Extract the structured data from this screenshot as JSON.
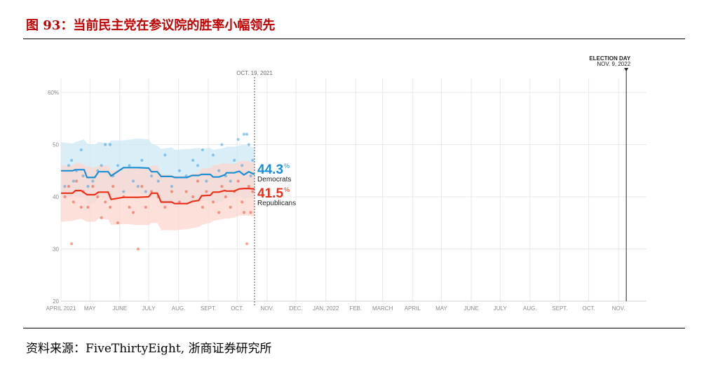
{
  "figure": {
    "title": "图 93：当前民主党在参议院的胜率小幅领先",
    "source": "资料来源：FiveThirtyEight, 浙商证券研究所"
  },
  "colors": {
    "title": "#c00000",
    "democrats": "#1a8fd6",
    "democrats_band": "#cde8f6",
    "republicans": "#ea3117",
    "republicans_band": "#fcd6cd",
    "grid": "#e8e8e8"
  },
  "chart_data": {
    "type": "line",
    "title": "",
    "xlabel": "",
    "ylabel": "",
    "ylim": [
      20,
      60
    ],
    "y_ticks": [
      20,
      30,
      40,
      50,
      60
    ],
    "y_tick_labels": [
      "20",
      "30",
      "40",
      "50",
      "60%"
    ],
    "x_range": [
      "2021-04-01",
      "2022-11-30"
    ],
    "x_ticks": [
      {
        "date": "2021-04-01",
        "label": "APRIL 2021"
      },
      {
        "date": "2021-05-01",
        "label": "MAY"
      },
      {
        "date": "2021-06-01",
        "label": "JUNE"
      },
      {
        "date": "2021-07-01",
        "label": "JULY"
      },
      {
        "date": "2021-08-01",
        "label": "AUG."
      },
      {
        "date": "2021-09-01",
        "label": "SEPT."
      },
      {
        "date": "2021-10-01",
        "label": "OCT."
      },
      {
        "date": "2021-11-01",
        "label": "NOV."
      },
      {
        "date": "2021-12-01",
        "label": "DEC."
      },
      {
        "date": "2022-01-01",
        "label": "JAN. 2022"
      },
      {
        "date": "2022-02-01",
        "label": "FEB."
      },
      {
        "date": "2022-03-01",
        "label": "MARCH"
      },
      {
        "date": "2022-04-01",
        "label": "APRIL"
      },
      {
        "date": "2022-05-01",
        "label": "MAY"
      },
      {
        "date": "2022-06-01",
        "label": "JUNE"
      },
      {
        "date": "2022-07-01",
        "label": "JULY"
      },
      {
        "date": "2022-08-01",
        "label": "AUG."
      },
      {
        "date": "2022-09-01",
        "label": "SEPT."
      },
      {
        "date": "2022-10-01",
        "label": "OCT."
      },
      {
        "date": "2022-11-01",
        "label": "NOV."
      }
    ],
    "current_marker": {
      "date": "2021-10-19",
      "label": "OCT. 19, 2021"
    },
    "election_day": {
      "date": "2022-11-09",
      "label": "ELECTION DAY",
      "sublabel": "NOV. 9, 2022"
    },
    "series": [
      {
        "name": "Democrats",
        "final_value": "44.3",
        "unit": "%",
        "x": [
          "2021-04-01",
          "2021-04-13",
          "2021-04-16",
          "2021-04-25",
          "2021-04-28",
          "2021-05-06",
          "2021-05-10",
          "2021-05-20",
          "2021-05-23",
          "2021-06-05",
          "2021-06-20",
          "2021-07-01",
          "2021-07-04",
          "2021-07-10",
          "2021-07-14",
          "2021-07-25",
          "2021-07-28",
          "2021-08-10",
          "2021-08-15",
          "2021-08-22",
          "2021-08-25",
          "2021-09-03",
          "2021-09-06",
          "2021-09-12",
          "2021-09-18",
          "2021-09-20",
          "2021-09-28",
          "2021-10-03",
          "2021-10-08",
          "2021-10-13",
          "2021-10-19"
        ],
        "values": [
          45.0,
          45.0,
          45.2,
          45.2,
          43.7,
          43.7,
          44.8,
          44.8,
          44.0,
          45.6,
          45.6,
          45.5,
          44.8,
          44.8,
          43.9,
          43.9,
          43.7,
          43.7,
          44.1,
          44.1,
          44.3,
          44.3,
          43.8,
          43.8,
          44.2,
          44.6,
          44.6,
          44.9,
          44.2,
          44.8,
          44.3
        ],
        "band_upper": [
          50.5,
          50.2,
          50.5,
          51.0,
          50.2,
          50.0,
          50.5,
          50.3,
          50.8,
          50.8,
          51.2,
          51.0,
          50.2,
          49.8,
          49.2,
          49.5,
          49.0,
          49.2,
          49.2,
          49.4,
          49.2,
          49.4,
          49.0,
          49.2,
          49.4,
          49.6,
          49.6,
          49.8,
          50.0,
          49.8,
          49.4
        ],
        "band_lower": [
          40.0,
          40.2,
          40.0,
          39.8,
          38.6,
          38.8,
          39.8,
          40.2,
          39.2,
          40.6,
          40.6,
          40.4,
          39.6,
          39.6,
          38.6,
          38.4,
          38.4,
          38.4,
          38.8,
          38.8,
          39.2,
          39.2,
          38.8,
          38.8,
          39.4,
          39.8,
          39.8,
          40.2,
          39.6,
          40.0,
          39.6
        ],
        "polls": [
          {
            "x": "2021-04-05",
            "y": 42
          },
          {
            "x": "2021-04-09",
            "y": 46
          },
          {
            "x": "2021-04-12",
            "y": 47
          },
          {
            "x": "2021-04-14",
            "y": 43
          },
          {
            "x": "2021-04-17",
            "y": 45
          },
          {
            "x": "2021-04-22",
            "y": 49
          },
          {
            "x": "2021-04-24",
            "y": 44
          },
          {
            "x": "2021-04-29",
            "y": 42
          },
          {
            "x": "2021-05-04",
            "y": 43
          },
          {
            "x": "2021-05-09",
            "y": 45
          },
          {
            "x": "2021-05-13",
            "y": 46
          },
          {
            "x": "2021-05-17",
            "y": 50
          },
          {
            "x": "2021-05-22",
            "y": 50
          },
          {
            "x": "2021-05-25",
            "y": 44
          },
          {
            "x": "2021-05-30",
            "y": 46
          },
          {
            "x": "2021-06-05",
            "y": 41
          },
          {
            "x": "2021-06-11",
            "y": 46
          },
          {
            "x": "2021-06-15",
            "y": 43
          },
          {
            "x": "2021-06-20",
            "y": 42
          },
          {
            "x": "2021-06-24",
            "y": 47
          },
          {
            "x": "2021-06-28",
            "y": 41
          },
          {
            "x": "2021-07-04",
            "y": 44
          },
          {
            "x": "2021-07-11",
            "y": 43
          },
          {
            "x": "2021-07-18",
            "y": 48
          },
          {
            "x": "2021-07-25",
            "y": 42
          },
          {
            "x": "2021-08-02",
            "y": 45
          },
          {
            "x": "2021-08-09",
            "y": 44
          },
          {
            "x": "2021-08-16",
            "y": 47
          },
          {
            "x": "2021-08-21",
            "y": 46
          },
          {
            "x": "2021-08-26",
            "y": 49
          },
          {
            "x": "2021-08-30",
            "y": 43
          },
          {
            "x": "2021-09-06",
            "y": 48
          },
          {
            "x": "2021-09-12",
            "y": 45
          },
          {
            "x": "2021-09-15",
            "y": 50
          },
          {
            "x": "2021-09-19",
            "y": 44
          },
          {
            "x": "2021-09-24",
            "y": 43
          },
          {
            "x": "2021-09-28",
            "y": 47
          },
          {
            "x": "2021-10-02",
            "y": 51
          },
          {
            "x": "2021-10-06",
            "y": 46
          },
          {
            "x": "2021-10-08",
            "y": 52
          },
          {
            "x": "2021-10-11",
            "y": 52
          },
          {
            "x": "2021-10-13",
            "y": 50
          },
          {
            "x": "2021-10-15",
            "y": 44
          },
          {
            "x": "2021-10-17",
            "y": 47
          }
        ]
      },
      {
        "name": "Republicans",
        "final_value": "41.5",
        "unit": "%",
        "x": [
          "2021-04-01",
          "2021-04-13",
          "2021-04-16",
          "2021-04-22",
          "2021-04-28",
          "2021-05-06",
          "2021-05-10",
          "2021-05-20",
          "2021-05-23",
          "2021-06-05",
          "2021-06-20",
          "2021-07-01",
          "2021-07-04",
          "2021-07-10",
          "2021-07-14",
          "2021-07-25",
          "2021-07-28",
          "2021-08-10",
          "2021-08-15",
          "2021-08-22",
          "2021-08-25",
          "2021-09-03",
          "2021-09-06",
          "2021-09-12",
          "2021-09-18",
          "2021-09-20",
          "2021-09-28",
          "2021-10-03",
          "2021-10-08",
          "2021-10-13",
          "2021-10-19"
        ],
        "values": [
          40.7,
          40.7,
          41.2,
          41.2,
          40.4,
          40.4,
          40.9,
          40.9,
          39.5,
          39.9,
          39.9,
          40.0,
          40.7,
          40.7,
          39.0,
          39.0,
          38.7,
          38.7,
          39.1,
          39.3,
          40.2,
          40.3,
          40.9,
          40.9,
          41.2,
          41.1,
          41.1,
          41.5,
          41.6,
          41.6,
          41.5
        ],
        "band_upper": [
          46.0,
          46.0,
          46.5,
          46.4,
          45.8,
          45.6,
          46.0,
          46.0,
          45.0,
          45.4,
          45.4,
          45.6,
          46.0,
          46.0,
          44.4,
          44.2,
          44.0,
          44.0,
          44.4,
          44.6,
          45.4,
          45.5,
          46.0,
          46.2,
          46.5,
          46.3,
          46.3,
          46.8,
          46.9,
          46.8,
          46.4
        ],
        "band_lower": [
          35.2,
          35.4,
          35.6,
          35.8,
          35.2,
          35.2,
          35.8,
          35.6,
          34.6,
          34.8,
          34.6,
          34.6,
          35.0,
          35.0,
          33.6,
          33.6,
          33.6,
          33.8,
          34.0,
          34.2,
          34.6,
          35.0,
          35.4,
          35.6,
          35.8,
          35.8,
          36.0,
          36.4,
          36.4,
          36.4,
          36.2
        ],
        "polls": [
          {
            "x": "2021-04-05",
            "y": 40
          },
          {
            "x": "2021-04-09",
            "y": 42
          },
          {
            "x": "2021-04-12",
            "y": 31
          },
          {
            "x": "2021-04-14",
            "y": 39
          },
          {
            "x": "2021-04-17",
            "y": 43
          },
          {
            "x": "2021-04-22",
            "y": 38
          },
          {
            "x": "2021-04-24",
            "y": 41
          },
          {
            "x": "2021-04-29",
            "y": 38
          },
          {
            "x": "2021-05-04",
            "y": 42
          },
          {
            "x": "2021-05-09",
            "y": 40
          },
          {
            "x": "2021-05-13",
            "y": 36
          },
          {
            "x": "2021-05-17",
            "y": 39
          },
          {
            "x": "2021-05-22",
            "y": 38
          },
          {
            "x": "2021-05-25",
            "y": 42
          },
          {
            "x": "2021-05-30",
            "y": 35
          },
          {
            "x": "2021-06-05",
            "y": 40
          },
          {
            "x": "2021-06-11",
            "y": 38
          },
          {
            "x": "2021-06-15",
            "y": 37
          },
          {
            "x": "2021-06-20",
            "y": 30
          },
          {
            "x": "2021-06-24",
            "y": 42
          },
          {
            "x": "2021-06-28",
            "y": 38
          },
          {
            "x": "2021-07-04",
            "y": 41
          },
          {
            "x": "2021-07-11",
            "y": 40
          },
          {
            "x": "2021-07-18",
            "y": 38
          },
          {
            "x": "2021-07-25",
            "y": 41
          },
          {
            "x": "2021-08-02",
            "y": 39
          },
          {
            "x": "2021-08-09",
            "y": 41
          },
          {
            "x": "2021-08-16",
            "y": 40
          },
          {
            "x": "2021-08-21",
            "y": 43
          },
          {
            "x": "2021-08-26",
            "y": 38
          },
          {
            "x": "2021-08-30",
            "y": 41
          },
          {
            "x": "2021-09-06",
            "y": 39
          },
          {
            "x": "2021-09-12",
            "y": 37
          },
          {
            "x": "2021-09-15",
            "y": 42
          },
          {
            "x": "2021-09-19",
            "y": 40
          },
          {
            "x": "2021-09-24",
            "y": 38
          },
          {
            "x": "2021-09-28",
            "y": 41
          },
          {
            "x": "2021-10-02",
            "y": 43
          },
          {
            "x": "2021-10-06",
            "y": 39
          },
          {
            "x": "2021-10-08",
            "y": 37
          },
          {
            "x": "2021-10-11",
            "y": 31
          },
          {
            "x": "2021-10-13",
            "y": 42
          },
          {
            "x": "2021-10-15",
            "y": 37
          },
          {
            "x": "2021-10-17",
            "y": 41
          }
        ]
      }
    ]
  }
}
